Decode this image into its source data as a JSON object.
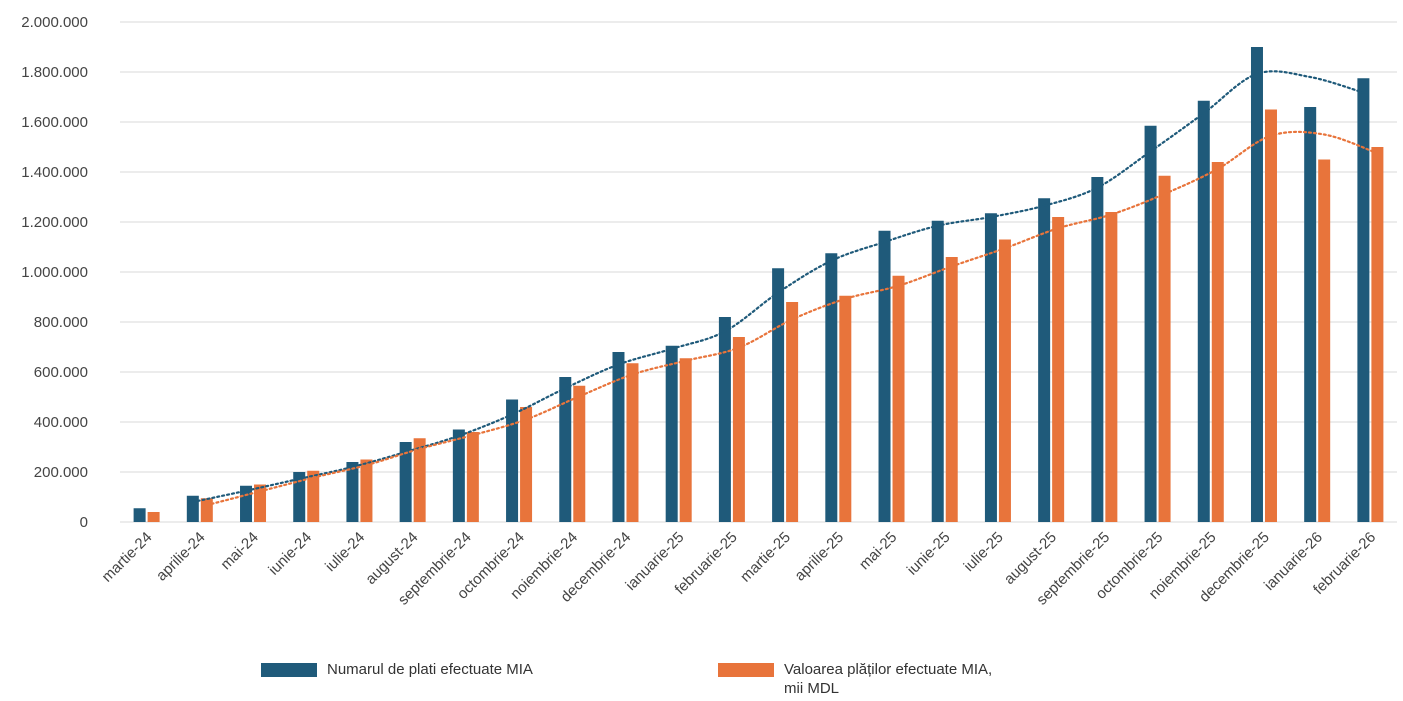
{
  "chart_data": {
    "type": "bar",
    "categories": [
      "martie-24",
      "aprilie-24",
      "mai-24",
      "iunie-24",
      "iulie-24",
      "august-24",
      "septembrie-24",
      "octombrie-24",
      "noiembrie-24",
      "decembrie-24",
      "ianuarie-25",
      "februarie-25",
      "martie-25",
      "aprilie-25",
      "mai-25",
      "iunie-25",
      "iulie-25",
      "august-25",
      "septembrie-25",
      "octombrie-25",
      "noiembrie-25",
      "decembrie-25",
      "ianuarie-26",
      "februarie-26"
    ],
    "series": [
      {
        "name": "Numarul de plati efectuate MIA",
        "color": "#1f5a7a",
        "trendline": "dotted",
        "values": [
          55000,
          105000,
          145000,
          200000,
          240000,
          320000,
          370000,
          490000,
          580000,
          680000,
          705000,
          820000,
          1015000,
          1075000,
          1165000,
          1205000,
          1235000,
          1295000,
          1380000,
          1585000,
          1685000,
          1900000,
          1660000,
          1775000
        ]
      },
      {
        "name": "Valoarea plăților efectuate MIA,\nmii MDL",
        "color": "#e8743b",
        "trendline": "dotted",
        "values": [
          40000,
          95000,
          150000,
          205000,
          250000,
          335000,
          360000,
          460000,
          545000,
          635000,
          655000,
          740000,
          880000,
          905000,
          985000,
          1060000,
          1130000,
          1220000,
          1240000,
          1385000,
          1440000,
          1650000,
          1450000,
          1500000
        ]
      }
    ],
    "y_ticks": [
      "0",
      "200.000",
      "400.000",
      "600.000",
      "800.000",
      "1.000.000",
      "1.200.000",
      "1.400.000",
      "1.600.000",
      "1.800.000",
      "2.000.000"
    ],
    "ylim": [
      0,
      2000000
    ],
    "grid": true,
    "legend_position": "bottom"
  }
}
